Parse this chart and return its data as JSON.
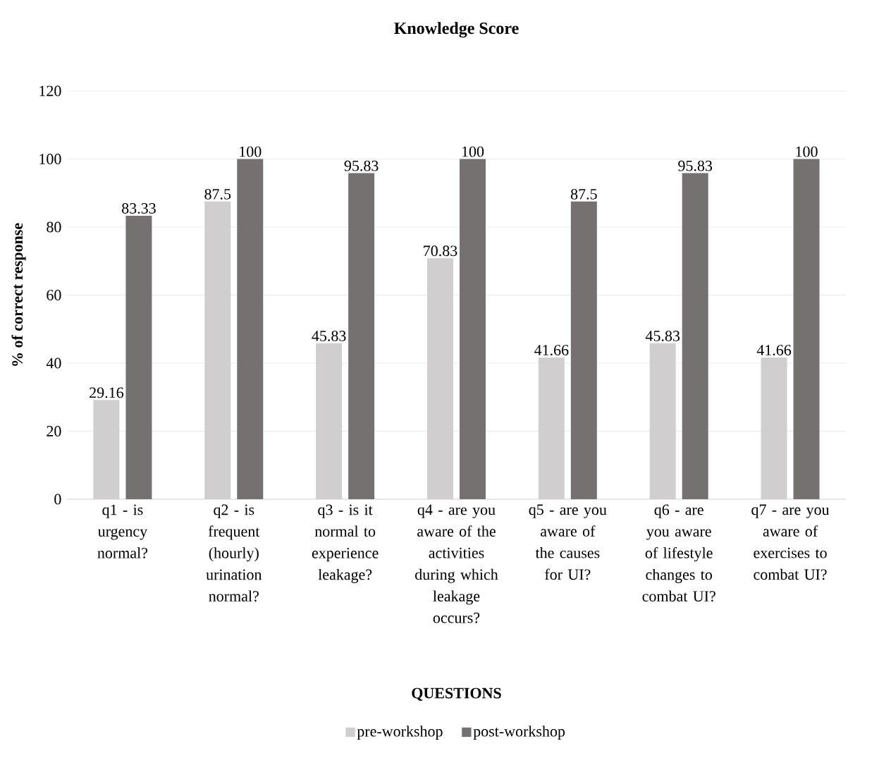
{
  "chart_data": {
    "type": "bar",
    "title": "Knowledge Score",
    "xlabel": "QUESTIONS",
    "ylabel": "% of correct response",
    "categories": [
      "q1 - is urgency normal?",
      "q2 - is frequent (hourly) urination normal?",
      "q3 - is it normal to experience leakage?",
      "q4 - are you aware of the activities during which leakage occurs?",
      "q5 - are you aware of the causes for UI?",
      "q6 - are you aware of lifestyle changes to combat UI?",
      "q7 - are you aware of exercises to combat UI?"
    ],
    "series": [
      {
        "name": "pre-workshop",
        "color": "#d0cece",
        "values": [
          29.16,
          87.5,
          45.83,
          70.83,
          41.66,
          45.83,
          41.66
        ]
      },
      {
        "name": "post-workshop",
        "color": "#767171",
        "values": [
          83.33,
          100,
          95.83,
          100,
          87.5,
          95.83,
          100
        ]
      }
    ],
    "ylim": [
      0,
      120
    ],
    "yticks": [
      0,
      20,
      40,
      60,
      80,
      100,
      120
    ],
    "grid": "y",
    "legend": "bottom",
    "data_labels": true
  }
}
